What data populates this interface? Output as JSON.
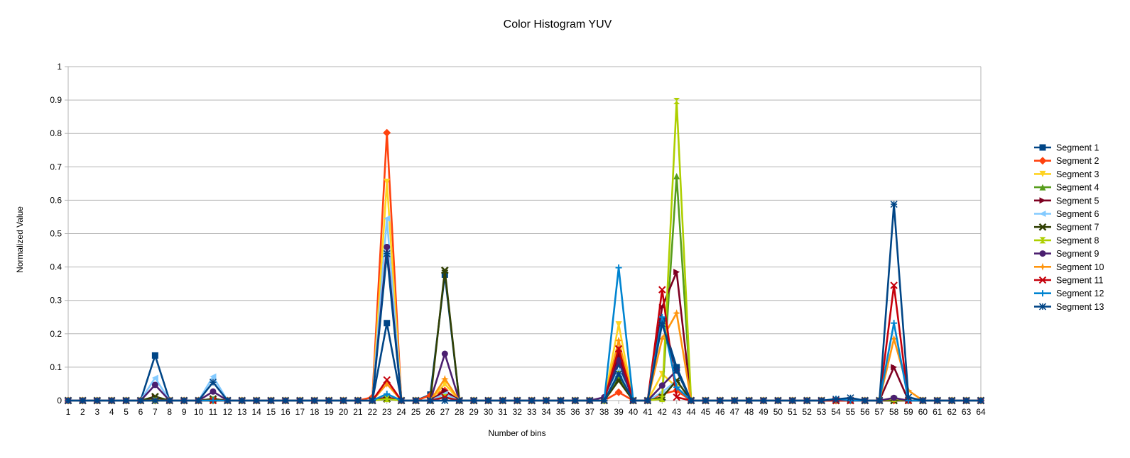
{
  "chart_data": {
    "type": "line",
    "title": "Color Histogram YUV",
    "xlabel": "Number of bins",
    "ylabel": "Normalized Value",
    "ylim": [
      0,
      1
    ],
    "yticks": [
      0,
      0.1,
      0.2,
      0.3,
      0.4,
      0.5,
      0.6,
      0.7,
      0.8,
      0.9,
      1
    ],
    "ytick_labels": [
      "0",
      "0.1",
      "0.2",
      "0.3",
      "0.4",
      "0.5",
      "0.6",
      "0.7",
      "0.8",
      "0.9",
      "1"
    ],
    "categories": [
      "1",
      "2",
      "3",
      "4",
      "5",
      "6",
      "7",
      "8",
      "9",
      "10",
      "11",
      "12",
      "13",
      "14",
      "15",
      "16",
      "17",
      "18",
      "19",
      "20",
      "21",
      "22",
      "23",
      "24",
      "25",
      "26",
      "27",
      "28",
      "29",
      "30",
      "31",
      "32",
      "33",
      "34",
      "35",
      "36",
      "37",
      "38",
      "39",
      "40",
      "41",
      "42",
      "43",
      "44",
      "45",
      "46",
      "47",
      "48",
      "49",
      "50",
      "51",
      "52",
      "53",
      "54",
      "55",
      "56",
      "57",
      "58",
      "59",
      "60",
      "61",
      "62",
      "63",
      "64"
    ],
    "grid": true,
    "legend_position": "right",
    "series": [
      {
        "name": "Segment 1",
        "color": "#004586",
        "marker": "square",
        "points": [
          [
            7,
            0.135
          ],
          [
            23,
            0.232
          ],
          [
            26,
            0.018
          ],
          [
            27,
            0.377
          ],
          [
            39,
            0.11
          ],
          [
            42,
            0.24
          ],
          [
            43,
            0.1
          ],
          [
            58,
            0.005
          ]
        ]
      },
      {
        "name": "Segment 2",
        "color": "#ff420e",
        "marker": "diamond",
        "points": [
          [
            22,
            0.01
          ],
          [
            23,
            0.802
          ],
          [
            26,
            0.015
          ],
          [
            27,
            0.03
          ],
          [
            39,
            0.025
          ],
          [
            42,
            0.02
          ],
          [
            43,
            0.03
          ]
        ]
      },
      {
        "name": "Segment 3",
        "color": "#ffd320",
        "marker": "triangle-down",
        "points": [
          [
            23,
            0.655
          ],
          [
            27,
            0.05
          ],
          [
            39,
            0.228
          ],
          [
            42,
            0.08
          ],
          [
            43,
            0.04
          ],
          [
            58,
            0.005
          ]
        ]
      },
      {
        "name": "Segment 4",
        "color": "#579d1c",
        "marker": "triangle-up",
        "points": [
          [
            7,
            0.005
          ],
          [
            11,
            0.005
          ],
          [
            23,
            0.01
          ],
          [
            27,
            0.02
          ],
          [
            39,
            0.07
          ],
          [
            42,
            0.01
          ],
          [
            43,
            0.672
          ],
          [
            58,
            0.005
          ]
        ]
      },
      {
        "name": "Segment 5",
        "color": "#7e0021",
        "marker": "triangle-right",
        "points": [
          [
            7,
            0.01
          ],
          [
            23,
            0.01
          ],
          [
            27,
            0.03
          ],
          [
            39,
            0.14
          ],
          [
            42,
            0.28
          ],
          [
            43,
            0.385
          ],
          [
            58,
            0.1
          ]
        ]
      },
      {
        "name": "Segment 6",
        "color": "#83caff",
        "marker": "triangle-left",
        "points": [
          [
            7,
            0.068
          ],
          [
            11,
            0.072
          ],
          [
            23,
            0.545
          ],
          [
            27,
            0.02
          ],
          [
            39,
            0.09
          ],
          [
            42,
            0.025
          ],
          [
            43,
            0.06
          ],
          [
            58,
            0.005
          ]
        ]
      },
      {
        "name": "Segment 7",
        "color": "#314004",
        "marker": "x-cross",
        "points": [
          [
            7,
            0.012
          ],
          [
            11,
            0.005
          ],
          [
            23,
            0.005
          ],
          [
            27,
            0.39
          ],
          [
            39,
            0.06
          ],
          [
            42,
            0.01
          ],
          [
            43,
            0.06
          ]
        ]
      },
      {
        "name": "Segment 8",
        "color": "#aecf00",
        "marker": "hourglass",
        "points": [
          [
            23,
            0.005
          ],
          [
            27,
            0.01
          ],
          [
            39,
            0.08
          ],
          [
            42,
            0.005
          ],
          [
            43,
            0.897
          ],
          [
            58,
            0.005
          ]
        ]
      },
      {
        "name": "Segment 9",
        "color": "#4b1f6f",
        "marker": "circle",
        "points": [
          [
            7,
            0.047
          ],
          [
            11,
            0.027
          ],
          [
            23,
            0.46
          ],
          [
            27,
            0.14
          ],
          [
            38,
            0.01
          ],
          [
            39,
            0.12
          ],
          [
            42,
            0.045
          ],
          [
            43,
            0.09
          ],
          [
            58,
            0.008
          ]
        ]
      },
      {
        "name": "Segment 10",
        "color": "#ff950e",
        "marker": "star",
        "points": [
          [
            23,
            0.05
          ],
          [
            27,
            0.065
          ],
          [
            39,
            0.18
          ],
          [
            42,
            0.185
          ],
          [
            43,
            0.262
          ],
          [
            58,
            0.185
          ],
          [
            59,
            0.03
          ]
        ]
      },
      {
        "name": "Segment 11",
        "color": "#c5000b",
        "marker": "x",
        "points": [
          [
            23,
            0.062
          ],
          [
            27,
            0.01
          ],
          [
            39,
            0.155
          ],
          [
            42,
            0.332
          ],
          [
            43,
            0.01
          ],
          [
            58,
            0.345
          ]
        ]
      },
      {
        "name": "Segment 12",
        "color": "#0084d1",
        "marker": "plus",
        "points": [
          [
            23,
            0.02
          ],
          [
            39,
            0.398
          ],
          [
            42,
            0.25
          ],
          [
            43,
            0.04
          ],
          [
            54,
            0.005
          ],
          [
            58,
            0.232
          ]
        ]
      },
      {
        "name": "Segment 13",
        "color": "#004586",
        "marker": "asterisk",
        "points": [
          [
            11,
            0.055
          ],
          [
            23,
            0.44
          ],
          [
            39,
            0.08
          ],
          [
            42,
            0.23
          ],
          [
            43,
            0.09
          ],
          [
            54,
            0.004
          ],
          [
            55,
            0.008
          ],
          [
            58,
            0.588
          ],
          [
            59,
            0.01
          ]
        ]
      }
    ]
  }
}
